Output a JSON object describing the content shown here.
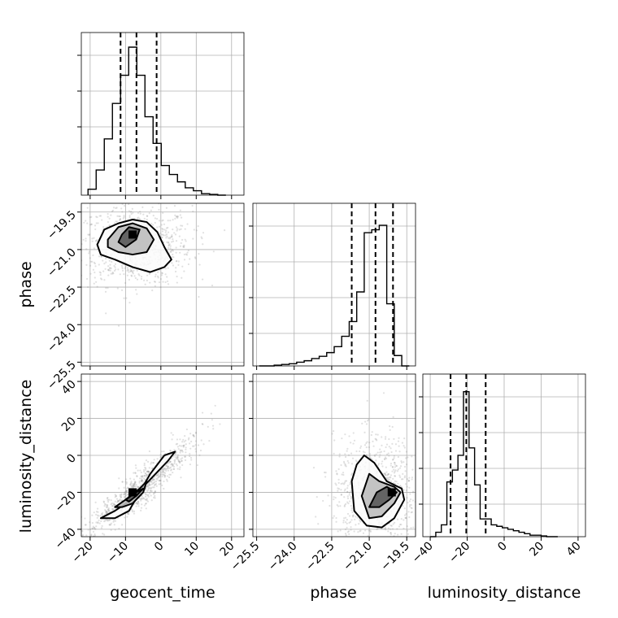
{
  "chart_data": {
    "type": "corner",
    "parameters": [
      "geocent_time",
      "phase",
      "luminosity_distance"
    ],
    "axis_labels": {
      "geocent_time": "geocent_time",
      "phase": "phase",
      "luminosity_distance": "luminosity_distance"
    },
    "ranges": {
      "geocent_time": [
        -22.5,
        23.5
      ],
      "phase": [
        -25.65,
        -19.15
      ],
      "luminosity_distance": [
        -44,
        44
      ]
    },
    "ticks": {
      "geocent_time": [
        -20,
        -10,
        0,
        10,
        20
      ],
      "phase": [
        -25.5,
        -24.0,
        -22.5,
        -21.0,
        -19.5
      ],
      "luminosity_distance": [
        -40,
        -20,
        0,
        20,
        40
      ]
    },
    "tick_labels": {
      "geocent_time": [
        "−20",
        "−10",
        "0",
        "10",
        "20"
      ],
      "phase": [
        "−25.5",
        "−24.0",
        "−22.5",
        "−21.0",
        "−19.5"
      ],
      "luminosity_distance": [
        "−40",
        "−20",
        "0",
        "20",
        "40"
      ]
    },
    "grid": true,
    "histograms": {
      "geocent_time": {
        "bin_edges": [
          -20.6,
          -18.3,
          -16.0,
          -13.7,
          -11.4,
          -9.1,
          -6.8,
          -4.5,
          -2.2,
          0.1,
          2.4,
          4.7,
          6.9,
          9.2,
          11.5,
          13.8,
          16.1,
          18.4
        ],
        "counts": [
          0.04,
          0.17,
          0.38,
          0.62,
          0.81,
          1.0,
          0.81,
          0.53,
          0.35,
          0.2,
          0.14,
          0.09,
          0.05,
          0.03,
          0.01,
          0.005,
          0.0
        ],
        "quantiles": [
          -11.4,
          -6.9,
          -1.2
        ]
      },
      "phase": {
        "bin_edges": [
          -25.4,
          -25.1,
          -24.8,
          -24.5,
          -24.2,
          -23.9,
          -23.6,
          -23.3,
          -23.0,
          -22.7,
          -22.4,
          -22.1,
          -21.8,
          -21.5,
          -21.2,
          -20.9,
          -20.6,
          -20.3,
          -20.0,
          -19.7,
          -19.4
        ],
        "counts": [
          0.0,
          0.0,
          0.005,
          0.01,
          0.015,
          0.025,
          0.035,
          0.05,
          0.065,
          0.09,
          0.13,
          0.2,
          0.3,
          0.5,
          0.9,
          0.92,
          0.95,
          0.42,
          0.07,
          0.0
        ],
        "quantiles": [
          -21.7,
          -20.75,
          -20.05
        ]
      },
      "luminosity_distance": {
        "bin_edges": [
          -40,
          -37,
          -34,
          -31,
          -28,
          -25,
          -22,
          -19,
          -16,
          -13,
          -10,
          -7,
          -4,
          -1,
          2,
          5,
          8,
          11,
          14,
          17,
          20,
          23,
          26,
          29
        ],
        "counts": [
          0.0,
          0.03,
          0.08,
          0.37,
          0.45,
          0.55,
          0.98,
          0.6,
          0.35,
          0.12,
          0.12,
          0.08,
          0.07,
          0.06,
          0.05,
          0.04,
          0.03,
          0.02,
          0.01,
          0.01,
          0.005,
          0.0,
          0.0
        ],
        "quantiles": [
          -29,
          -20.5,
          -10
        ]
      }
    },
    "pairs": [
      {
        "x": "geocent_time",
        "y": "phase",
        "peak": [
          -8,
          -20.4
        ],
        "contours": [
          [
            [
              -18,
              -20.8
            ],
            [
              -16,
              -20.2
            ],
            [
              -12,
              -19.95
            ],
            [
              -8,
              -19.8
            ],
            [
              -4,
              -19.9
            ],
            [
              -1,
              -20.3
            ],
            [
              1,
              -20.9
            ],
            [
              3,
              -21.4
            ],
            [
              1,
              -21.7
            ],
            [
              -3,
              -21.9
            ],
            [
              -8,
              -21.7
            ],
            [
              -13,
              -21.4
            ],
            [
              -17,
              -21.2
            ]
          ],
          [
            [
              -15,
              -20.6
            ],
            [
              -12,
              -20.1
            ],
            [
              -8,
              -19.95
            ],
            [
              -4,
              -20.15
            ],
            [
              -2,
              -20.6
            ],
            [
              -4,
              -21.1
            ],
            [
              -8,
              -21.2
            ],
            [
              -12,
              -21.1
            ],
            [
              -15,
              -20.9
            ]
          ],
          [
            [
              -11,
              -20.4
            ],
            [
              -9,
              -20.1
            ],
            [
              -6,
              -20.2
            ],
            [
              -7,
              -20.6
            ],
            [
              -10,
              -20.9
            ],
            [
              -12,
              -20.7
            ]
          ]
        ]
      },
      {
        "x": "geocent_time",
        "y": "luminosity_distance",
        "peak": [
          -8,
          -20
        ],
        "contours": [
          [
            [
              -17,
              -34
            ],
            [
              -13,
              -30
            ],
            [
              -9,
              -25
            ],
            [
              -5,
              -17
            ],
            [
              -1,
              -9
            ],
            [
              2,
              -3
            ],
            [
              4,
              2
            ],
            [
              1,
              0
            ],
            [
              -3,
              -10
            ],
            [
              -6,
              -20
            ],
            [
              -9,
              -30
            ],
            [
              -13,
              -34
            ]
          ],
          [
            [
              -13,
              -28
            ],
            [
              -10,
              -24
            ],
            [
              -6,
              -18
            ],
            [
              -4,
              -14
            ],
            [
              -5,
              -20
            ],
            [
              -8,
              -26
            ],
            [
              -11,
              -28
            ]
          ],
          [
            [
              -10,
              -24
            ],
            [
              -7,
              -20
            ],
            [
              -5,
              -18
            ],
            [
              -7,
              -22
            ],
            [
              -9,
              -25
            ]
          ]
        ]
      },
      {
        "x": "phase",
        "y": "luminosity_distance",
        "peak": [
          -20.1,
          -20
        ],
        "contours": [
          [
            [
              -21.7,
              -14
            ],
            [
              -21.5,
              -5
            ],
            [
              -21.2,
              0
            ],
            [
              -20.8,
              -4
            ],
            [
              -20.3,
              -14
            ],
            [
              -19.7,
              -18
            ],
            [
              -19.6,
              -24
            ],
            [
              -20.0,
              -34
            ],
            [
              -20.5,
              -39
            ],
            [
              -21.1,
              -38
            ],
            [
              -21.6,
              -30
            ]
          ],
          [
            [
              -21.3,
              -22
            ],
            [
              -21.0,
              -10
            ],
            [
              -20.6,
              -14
            ],
            [
              -20.0,
              -17
            ],
            [
              -19.75,
              -20
            ],
            [
              -20.0,
              -26
            ],
            [
              -20.5,
              -33
            ],
            [
              -21.0,
              -34
            ]
          ],
          [
            [
              -21.0,
              -28
            ],
            [
              -20.7,
              -20
            ],
            [
              -20.3,
              -17
            ],
            [
              -19.9,
              -20
            ],
            [
              -20.2,
              -24
            ],
            [
              -20.6,
              -28
            ]
          ]
        ]
      }
    ],
    "scatter_style": "light grey points",
    "quantile_line_style": "dashed"
  }
}
